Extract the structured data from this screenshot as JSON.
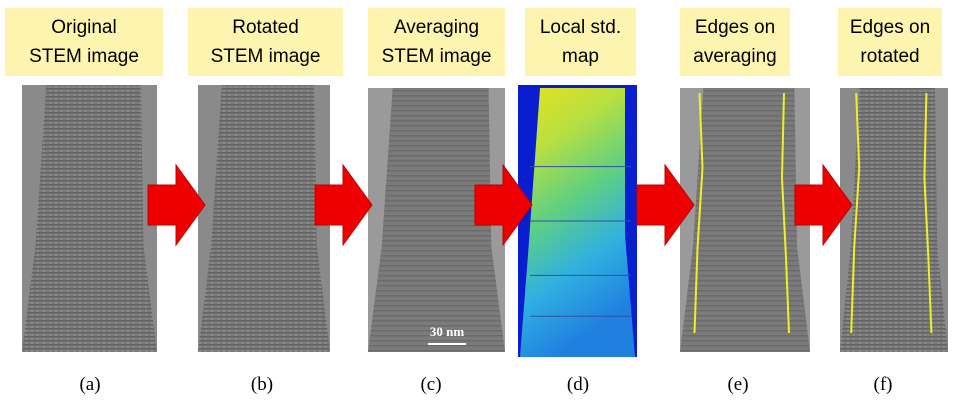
{
  "panels": [
    {
      "title": [
        "Original",
        "STEM image"
      ],
      "caption": "(a)"
    },
    {
      "title": [
        "Rotated",
        "STEM image"
      ],
      "caption": "(b)"
    },
    {
      "title": [
        "Averaging",
        "STEM image"
      ],
      "caption": "(c)"
    },
    {
      "title": [
        "Local std.",
        "map"
      ],
      "caption": "(d)"
    },
    {
      "title": [
        "Edges on",
        "averaging"
      ],
      "caption": "(e)"
    },
    {
      "title": [
        "Edges on",
        "rotated"
      ],
      "caption": "(f)"
    }
  ],
  "scale_bar": "30 nm"
}
